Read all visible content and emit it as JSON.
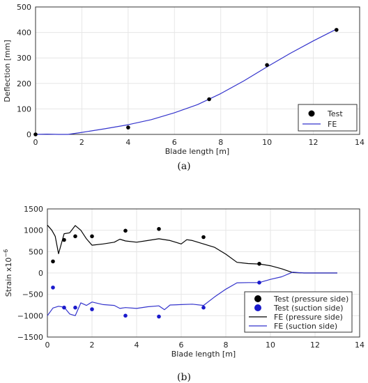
{
  "chart_data": [
    {
      "type": "line",
      "xlabel": "Blade length [m]",
      "ylabel": "Deflection [mm]",
      "xlim": [
        0,
        14
      ],
      "ylim": [
        0,
        500
      ],
      "xticks": [
        "0",
        "2",
        "4",
        "6",
        "8",
        "10",
        "12",
        "14"
      ],
      "yticks": [
        "0",
        "100",
        "200",
        "300",
        "400",
        "500"
      ],
      "grid": true,
      "legend_position": "bottom-right",
      "caption": "(a)",
      "series": [
        {
          "name": "Test",
          "kind": "scatter",
          "color": "#000000",
          "points": [
            [
              0,
              0
            ],
            [
              4,
              27
            ],
            [
              7.5,
              138
            ],
            [
              10,
              272
            ],
            [
              13,
              410
            ]
          ]
        },
        {
          "name": "FE",
          "kind": "line",
          "color": "#3333cc",
          "points": [
            [
              0,
              0
            ],
            [
              0.5,
              1
            ],
            [
              1,
              0
            ],
            [
              1.4,
              0
            ],
            [
              2,
              8
            ],
            [
              3,
              22
            ],
            [
              4,
              38
            ],
            [
              5,
              58
            ],
            [
              6,
              85
            ],
            [
              7,
              117
            ],
            [
              8,
              160
            ],
            [
              9,
              210
            ],
            [
              10,
              265
            ],
            [
              11,
              318
            ],
            [
              12,
              367
            ],
            [
              13,
              413
            ]
          ]
        }
      ]
    },
    {
      "type": "line",
      "xlabel": "Blade length [m]",
      "ylabel": "Strain x10",
      "ylabel_exponent": "−6",
      "xlim": [
        0,
        14
      ],
      "ylim": [
        -1500,
        1500
      ],
      "xticks": [
        "0",
        "2",
        "4",
        "6",
        "8",
        "10",
        "12",
        "14"
      ],
      "yticks": [
        "1500",
        "1000",
        "500",
        "0",
        "−500",
        "−1000",
        "−1500"
      ],
      "grid": true,
      "legend_position": "bottom-right",
      "caption": "(b)",
      "series": [
        {
          "name": "Test (pressure side)",
          "kind": "scatter",
          "color": "#000000",
          "points": [
            [
              0.25,
              270
            ],
            [
              0.75,
              775
            ],
            [
              1.25,
              860
            ],
            [
              2,
              860
            ],
            [
              3.5,
              990
            ],
            [
              5,
              1030
            ],
            [
              7,
              840
            ],
            [
              9.5,
              215
            ]
          ]
        },
        {
          "name": "Test (suction side)",
          "kind": "scatter",
          "color": "#1a1acc",
          "points": [
            [
              0.25,
              -340
            ],
            [
              0.75,
              -810
            ],
            [
              1.25,
              -810
            ],
            [
              2,
              -850
            ],
            [
              3.5,
              -1000
            ],
            [
              5,
              -1020
            ],
            [
              7,
              -810
            ],
            [
              9.5,
              -225
            ]
          ]
        },
        {
          "name": "FE (pressure side)",
          "kind": "line",
          "color": "#000000",
          "points": [
            [
              0,
              1120
            ],
            [
              0.2,
              1000
            ],
            [
              0.35,
              860
            ],
            [
              0.5,
              450
            ],
            [
              0.75,
              920
            ],
            [
              1,
              940
            ],
            [
              1.25,
              1110
            ],
            [
              1.5,
              1000
            ],
            [
              1.75,
              800
            ],
            [
              2,
              650
            ],
            [
              2.5,
              680
            ],
            [
              3,
              720
            ],
            [
              3.25,
              790
            ],
            [
              3.5,
              750
            ],
            [
              4,
              720
            ],
            [
              4.5,
              760
            ],
            [
              5,
              800
            ],
            [
              5.5,
              760
            ],
            [
              6,
              680
            ],
            [
              6.25,
              780
            ],
            [
              6.5,
              760
            ],
            [
              7,
              680
            ],
            [
              7.5,
              600
            ],
            [
              8,
              440
            ],
            [
              8.5,
              250
            ],
            [
              9,
              220
            ],
            [
              9.5,
              210
            ],
            [
              10,
              170
            ],
            [
              10.5,
              100
            ],
            [
              11,
              10
            ],
            [
              11.5,
              0
            ],
            [
              12,
              0
            ],
            [
              13,
              0
            ]
          ]
        },
        {
          "name": "FE (suction side)",
          "kind": "line",
          "color": "#3333cc",
          "points": [
            [
              0,
              -1000
            ],
            [
              0.25,
              -820
            ],
            [
              0.5,
              -780
            ],
            [
              0.75,
              -800
            ],
            [
              1,
              -960
            ],
            [
              1.25,
              -1000
            ],
            [
              1.5,
              -700
            ],
            [
              1.75,
              -760
            ],
            [
              2,
              -680
            ],
            [
              2.5,
              -740
            ],
            [
              3,
              -760
            ],
            [
              3.25,
              -830
            ],
            [
              3.5,
              -810
            ],
            [
              4,
              -830
            ],
            [
              4.5,
              -790
            ],
            [
              5,
              -770
            ],
            [
              5.25,
              -860
            ],
            [
              5.5,
              -750
            ],
            [
              6,
              -740
            ],
            [
              6.5,
              -730
            ],
            [
              7,
              -760
            ],
            [
              7.5,
              -560
            ],
            [
              8,
              -380
            ],
            [
              8.5,
              -230
            ],
            [
              9,
              -225
            ],
            [
              9.5,
              -225
            ],
            [
              10,
              -150
            ],
            [
              10.5,
              -90
            ],
            [
              11,
              20
            ],
            [
              11.5,
              0
            ],
            [
              12,
              0
            ],
            [
              13,
              0
            ]
          ]
        }
      ]
    }
  ]
}
